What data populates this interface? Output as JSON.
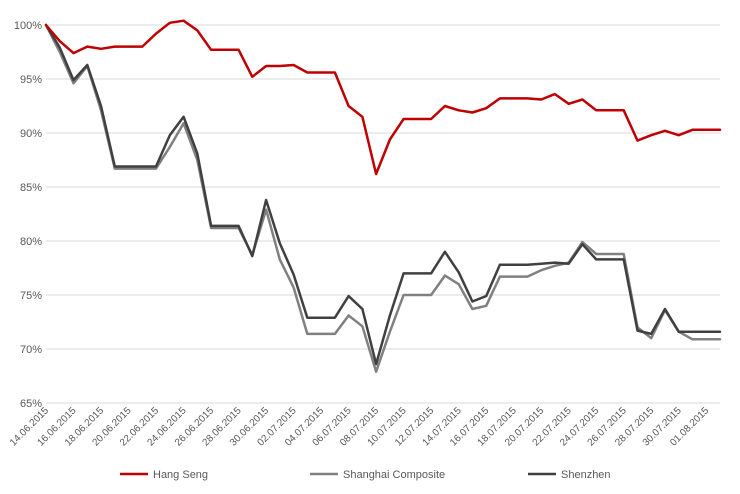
{
  "chart_data": {
    "type": "line",
    "title": "",
    "xlabel": "",
    "ylabel": "",
    "ylim": [
      0.65,
      1.0
    ],
    "y_ticks": [
      "65%",
      "70%",
      "75%",
      "80%",
      "85%",
      "90%",
      "95%",
      "100%"
    ],
    "y_tick_values": [
      0.65,
      0.7,
      0.75,
      0.8,
      0.85,
      0.9,
      0.95,
      1.0
    ],
    "grid": true,
    "legend_position": "bottom",
    "x_tick_labels": [
      "14.06.2015",
      "16.06.2015",
      "18.06.2015",
      "20.06.2015",
      "22.06.2015",
      "24.06.2015",
      "26.06.2015",
      "28.06.2015",
      "30.06.2015",
      "02.07.2015",
      "04.07.2015",
      "06.07.2015",
      "08.07.2015",
      "10.07.2015",
      "12.07.2015",
      "14.07.2015",
      "16.07.2015",
      "18.07.2015",
      "20.07.2015",
      "22.07.2015",
      "24.07.2015",
      "26.07.2015",
      "28.07.2015",
      "30.07.2015",
      "01.08.2015"
    ],
    "x": [
      "14.06.2015",
      "15.06.2015",
      "16.06.2015",
      "17.06.2015",
      "18.06.2015",
      "19.06.2015",
      "20.06.2015",
      "21.06.2015",
      "22.06.2015",
      "23.06.2015",
      "24.06.2015",
      "25.06.2015",
      "26.06.2015",
      "27.06.2015",
      "28.06.2015",
      "29.06.2015",
      "30.06.2015",
      "01.07.2015",
      "02.07.2015",
      "03.07.2015",
      "04.07.2015",
      "05.07.2015",
      "06.07.2015",
      "07.07.2015",
      "08.07.2015",
      "09.07.2015",
      "10.07.2015",
      "11.07.2015",
      "12.07.2015",
      "13.07.2015",
      "14.07.2015",
      "15.07.2015",
      "16.07.2015",
      "17.07.2015",
      "18.07.2015",
      "19.07.2015",
      "20.07.2015",
      "21.07.2015",
      "22.07.2015",
      "23.07.2015",
      "24.07.2015",
      "25.07.2015",
      "26.07.2015",
      "27.07.2015",
      "28.07.2015",
      "29.07.2015",
      "30.07.2015",
      "31.07.2015",
      "01.08.2015",
      "02.08.2015"
    ],
    "series": [
      {
        "name": "Hang Seng",
        "color": "#c00000",
        "values": [
          1.0,
          0.985,
          0.974,
          0.98,
          0.978,
          0.98,
          0.98,
          0.98,
          0.992,
          1.002,
          1.004,
          0.995,
          0.977,
          0.977,
          0.977,
          0.952,
          0.962,
          0.962,
          0.963,
          0.956,
          0.956,
          0.956,
          0.925,
          0.915,
          0.862,
          0.894,
          0.913,
          0.913,
          0.913,
          0.925,
          0.921,
          0.919,
          0.923,
          0.932,
          0.932,
          0.932,
          0.931,
          0.936,
          0.927,
          0.931,
          0.921,
          0.921,
          0.921,
          0.893,
          0.898,
          0.902,
          0.898,
          0.903,
          0.903,
          0.903
        ]
      },
      {
        "name": "Shanghai Composite",
        "color": "#808080",
        "values": [
          1.0,
          0.975,
          0.946,
          0.962,
          0.921,
          0.867,
          0.867,
          0.867,
          0.867,
          0.887,
          0.909,
          0.875,
          0.812,
          0.812,
          0.812,
          0.787,
          0.829,
          0.783,
          0.757,
          0.714,
          0.714,
          0.714,
          0.731,
          0.721,
          0.679,
          0.716,
          0.75,
          0.75,
          0.75,
          0.768,
          0.76,
          0.737,
          0.74,
          0.767,
          0.767,
          0.767,
          0.773,
          0.777,
          0.78,
          0.799,
          0.788,
          0.788,
          0.788,
          0.72,
          0.71,
          0.736,
          0.716,
          0.709,
          0.709,
          0.709
        ]
      },
      {
        "name": "Shenzhen",
        "color": "#404040",
        "values": [
          1.0,
          0.979,
          0.949,
          0.963,
          0.925,
          0.869,
          0.869,
          0.869,
          0.869,
          0.898,
          0.915,
          0.881,
          0.814,
          0.814,
          0.814,
          0.786,
          0.838,
          0.798,
          0.769,
          0.729,
          0.729,
          0.729,
          0.749,
          0.737,
          0.686,
          0.731,
          0.77,
          0.77,
          0.77,
          0.79,
          0.771,
          0.744,
          0.749,
          0.778,
          0.778,
          0.778,
          0.779,
          0.78,
          0.779,
          0.797,
          0.783,
          0.783,
          0.783,
          0.717,
          0.714,
          0.737,
          0.716,
          0.716,
          0.716,
          0.716
        ]
      }
    ]
  }
}
